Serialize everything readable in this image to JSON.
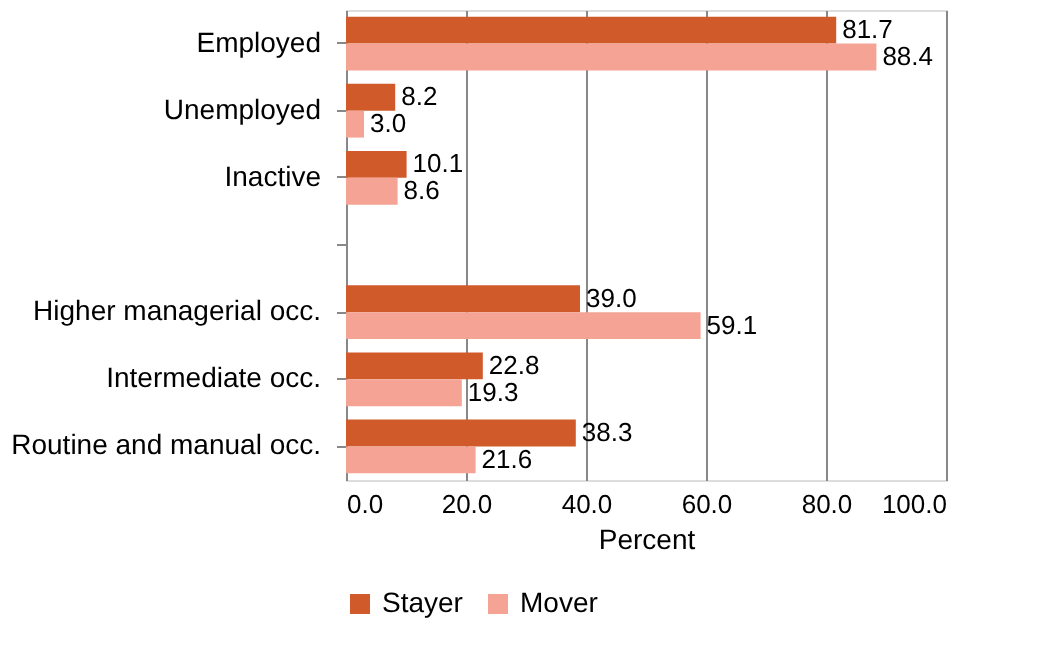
{
  "chart_data": {
    "type": "bar",
    "orientation": "horizontal",
    "xlabel": "Percent",
    "categories": [
      "Employed",
      "Unemployed",
      "Inactive",
      null,
      "Higher managerial occ.",
      "Intermediate occ.",
      "Routine and manual occ."
    ],
    "series": [
      {
        "name": "Stayer",
        "color": "#d05a2a",
        "values": [
          81.7,
          8.2,
          10.1,
          null,
          39.0,
          22.8,
          38.3
        ],
        "value_labels": [
          "81.7",
          "8.2",
          "10.1",
          null,
          "39.0",
          "22.8",
          "38.3"
        ]
      },
      {
        "name": "Mover",
        "color": "#f4a394",
        "values": [
          88.4,
          3.0,
          8.6,
          null,
          59.1,
          19.3,
          21.6
        ],
        "value_labels": [
          "88.4",
          "3.0",
          "8.6",
          null,
          "59.1",
          "19.3",
          "21.6"
        ]
      }
    ],
    "xlim": [
      0,
      100
    ],
    "xticks": [
      {
        "value": 0,
        "label": "0.0"
      },
      {
        "value": 20,
        "label": "20.0"
      },
      {
        "value": 40,
        "label": "40.0"
      },
      {
        "value": 60,
        "label": "60.0"
      },
      {
        "value": 80,
        "label": "80.0"
      },
      {
        "value": 100,
        "label": "100.0"
      }
    ],
    "grid": "x",
    "legend": "bottom"
  }
}
